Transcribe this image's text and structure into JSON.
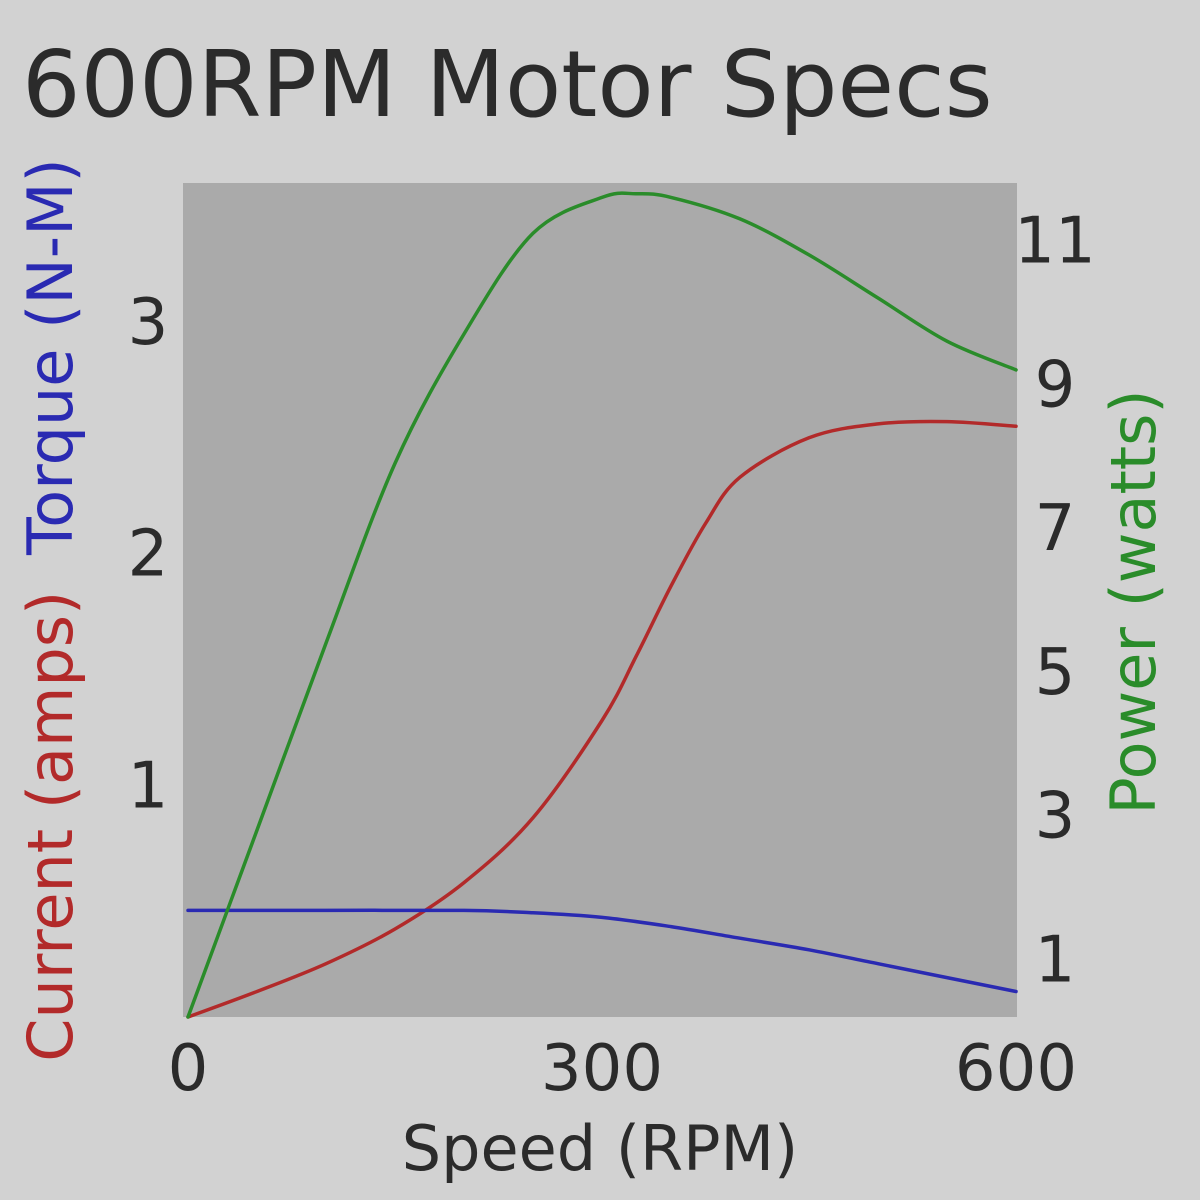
{
  "chart_data": {
    "type": "line",
    "title": "600RPM Motor Specs",
    "xlabel": "Speed (RPM)",
    "ylabel_left": [
      {
        "text": "Current (amps)",
        "color": "#b22a2a"
      },
      {
        "text": "Torque (N-M)",
        "color": "#2a2ab2"
      }
    ],
    "ylabel_right": {
      "text": "Power (watts)",
      "color": "#2a8c2a"
    },
    "xlim": [
      0,
      600
    ],
    "ylim_left": [
      0,
      3.6
    ],
    "ylim_right": [
      0.2,
      11.8
    ],
    "x_ticks": [
      "0",
      "300",
      "600"
    ],
    "y_left_ticks": [
      "1",
      "2",
      "3"
    ],
    "y_right_ticks": [
      "1",
      "3",
      "5",
      "7",
      "9",
      "11"
    ],
    "grid": false,
    "series": [
      {
        "name": "Current",
        "axis": "left",
        "color": "#b22a2a",
        "x": [
          0,
          50,
          100,
          150,
          200,
          250,
          300,
          325,
          350,
          375,
          400,
          450,
          500,
          550,
          600
        ],
        "y": [
          0,
          0.11,
          0.23,
          0.38,
          0.58,
          0.86,
          1.28,
          1.56,
          1.86,
          2.13,
          2.33,
          2.5,
          2.56,
          2.57,
          2.55
        ]
      },
      {
        "name": "Torque",
        "axis": "left",
        "color": "#2a2ab2",
        "x": [
          0,
          100,
          200,
          250,
          300,
          350,
          400,
          450,
          500,
          550,
          600
        ],
        "y": [
          0.46,
          0.46,
          0.46,
          0.45,
          0.43,
          0.39,
          0.34,
          0.29,
          0.23,
          0.17,
          0.11
        ]
      },
      {
        "name": "Power",
        "axis": "right",
        "color": "#2a8c2a",
        "x": [
          0,
          50,
          100,
          150,
          200,
          250,
          300,
          325,
          350,
          400,
          450,
          500,
          550,
          600
        ],
        "y": [
          0.2,
          2.8,
          5.4,
          7.9,
          9.7,
          11.1,
          11.6,
          11.65,
          11.6,
          11.3,
          10.8,
          10.2,
          9.6,
          9.2
        ]
      }
    ]
  }
}
